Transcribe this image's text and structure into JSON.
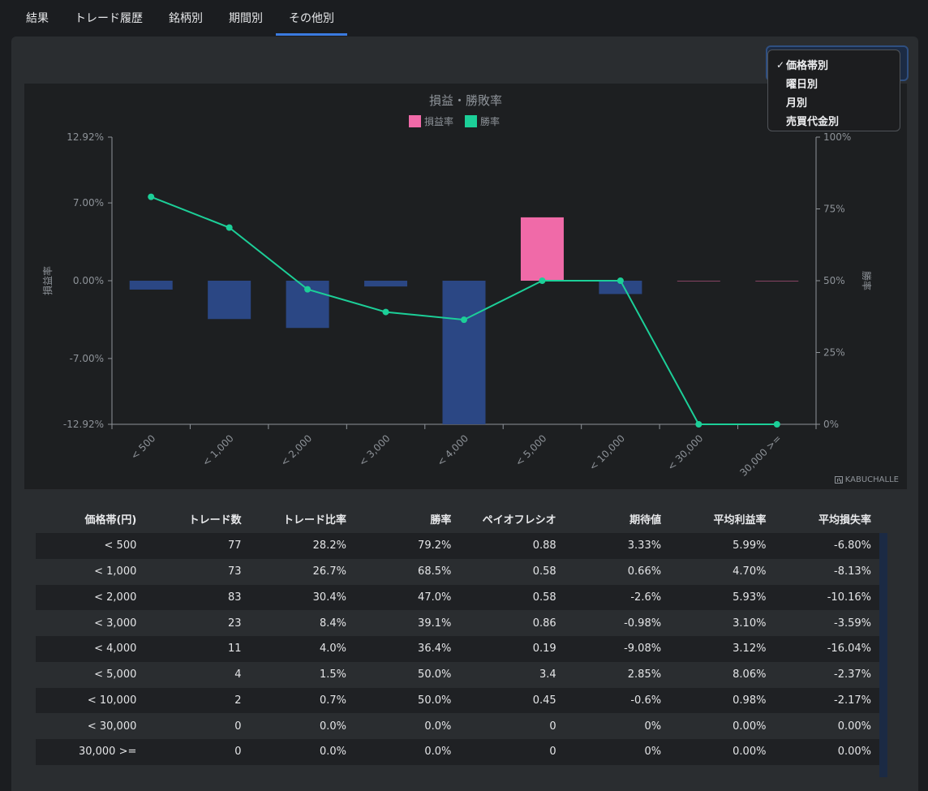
{
  "tabs": [
    {
      "label": "結果"
    },
    {
      "label": "トレード履歴"
    },
    {
      "label": "銘柄別"
    },
    {
      "label": "期間別"
    },
    {
      "label": "その他別",
      "active": true
    }
  ],
  "dropdown": {
    "items": [
      {
        "label": "価格帯別",
        "selected": true
      },
      {
        "label": "曜日別"
      },
      {
        "label": "月別"
      },
      {
        "label": "売買代金別"
      }
    ],
    "check_glyph": "✓"
  },
  "chart_data": {
    "type": "bar+line",
    "title": "損益・勝敗率",
    "categories": [
      "< 500",
      "< 1,000",
      "< 2,000",
      "< 3,000",
      "< 4,000",
      "< 5,000",
      "< 10,000",
      "< 30,000",
      "30,000 >="
    ],
    "series": [
      {
        "name": "損益率",
        "type": "bar",
        "axis": "left",
        "values": [
          -0.8,
          -3.45,
          -4.25,
          -0.52,
          -12.92,
          5.7,
          -1.2,
          0,
          0
        ],
        "color_positive": "#f06aa8",
        "color_negative": "#2b4784"
      },
      {
        "name": "勝率",
        "type": "line",
        "axis": "right",
        "values": [
          79.2,
          68.5,
          47.0,
          39.1,
          36.4,
          50.0,
          50.0,
          0.0,
          0.0
        ],
        "color": "#1ccf98"
      }
    ],
    "y_left": {
      "label": "損益率",
      "ticks": [
        "12.92%",
        "7.00%",
        "0.00%",
        "-7.00%",
        "-12.92%"
      ],
      "tick_values": [
        12.92,
        7.0,
        0,
        -7.0,
        -12.92
      ],
      "ylim": [
        -12.92,
        12.92
      ]
    },
    "y_right": {
      "label": "勝率",
      "ticks": [
        "100%",
        "75%",
        "50%",
        "25%",
        "0%"
      ],
      "tick_values": [
        100,
        75,
        50,
        25,
        0
      ],
      "ylim": [
        0,
        100
      ]
    },
    "legend_position": "top-center",
    "watermark": "KABUCHALLE"
  },
  "table": {
    "headers": [
      "価格帯(円)",
      "トレード数",
      "トレード比率",
      "勝率",
      "ペイオフレシオ",
      "期待値",
      "平均利益率",
      "平均損失率"
    ],
    "rows": [
      [
        "< 500",
        "77",
        "28.2%",
        "79.2%",
        "0.88",
        "3.33%",
        "5.99%",
        "-6.80%"
      ],
      [
        "< 1,000",
        "73",
        "26.7%",
        "68.5%",
        "0.58",
        "0.66%",
        "4.70%",
        "-8.13%"
      ],
      [
        "< 2,000",
        "83",
        "30.4%",
        "47.0%",
        "0.58",
        "-2.6%",
        "5.93%",
        "-10.16%"
      ],
      [
        "< 3,000",
        "23",
        "8.4%",
        "39.1%",
        "0.86",
        "-0.98%",
        "3.10%",
        "-3.59%"
      ],
      [
        "< 4,000",
        "11",
        "4.0%",
        "36.4%",
        "0.19",
        "-9.08%",
        "3.12%",
        "-16.04%"
      ],
      [
        "< 5,000",
        "4",
        "1.5%",
        "50.0%",
        "3.4",
        "2.85%",
        "8.06%",
        "-2.37%"
      ],
      [
        "< 10,000",
        "2",
        "0.7%",
        "50.0%",
        "0.45",
        "-0.6%",
        "0.98%",
        "-2.17%"
      ],
      [
        "< 30,000",
        "0",
        "0.0%",
        "0.0%",
        "0",
        "0%",
        "0.00%",
        "0.00%"
      ],
      [
        "30,000 >=",
        "0",
        "0.0%",
        "0.0%",
        "0",
        "0%",
        "0.00%",
        "0.00%"
      ]
    ]
  }
}
